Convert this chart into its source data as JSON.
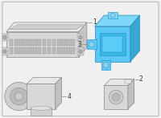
{
  "background_color": "#f0f0f0",
  "border_color": "#bbbbbb",
  "part1_fc_front": "#d8d8d8",
  "part1_fc_top": "#e8e8e8",
  "part1_fc_right": "#c8c8c8",
  "part1_ec": "#888888",
  "part3_fc_front": "#5bc8f5",
  "part3_fc_top": "#80d8f8",
  "part3_fc_right": "#38a8d0",
  "part3_ec": "#2288bb",
  "part24_fc_front": "#d8d8d8",
  "part24_fc_top": "#e8e8e8",
  "part24_fc_right": "#c0c0c0",
  "part24_ec": "#888888",
  "label_color": "#333333",
  "line_color": "#888888",
  "font_size": 5.5,
  "lw": 0.5
}
